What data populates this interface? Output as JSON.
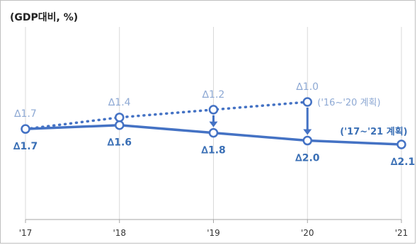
{
  "unit_label": "(GDP대비, %)",
  "colors": {
    "plan_line": "#8ea9d4",
    "actual_line": "#4472c4",
    "actual_label": "#3a6fb5",
    "arrow": "#4472c4",
    "grid": "#d9d9d9",
    "axis": "#a6a6a6"
  },
  "chart_data": {
    "type": "line",
    "categories": [
      "'17",
      "'18",
      "'19",
      "'20",
      "'21"
    ],
    "ylim": [
      -2.5,
      0
    ],
    "grid": "vertical",
    "series": [
      {
        "name": "('16~'20 계획)",
        "style": "dotted",
        "values": [
          -1.7,
          -1.4,
          -1.2,
          -1.0,
          null
        ],
        "labels": [
          "∆1.7",
          "∆1.4",
          "∆1.2",
          "∆1.0",
          ""
        ]
      },
      {
        "name": "('17~'21 계획)",
        "style": "solid",
        "values": [
          -1.7,
          -1.6,
          -1.8,
          -2.0,
          -2.1
        ],
        "labels": [
          "∆1.7",
          "∆1.6",
          "∆1.8",
          "∆2.0",
          "∆2.1"
        ]
      }
    ],
    "annotations": [
      {
        "type": "arrow",
        "category": "'19",
        "from": -1.2,
        "to": -1.8
      },
      {
        "type": "arrow",
        "category": "'20",
        "from": -1.0,
        "to": -2.0
      }
    ]
  }
}
